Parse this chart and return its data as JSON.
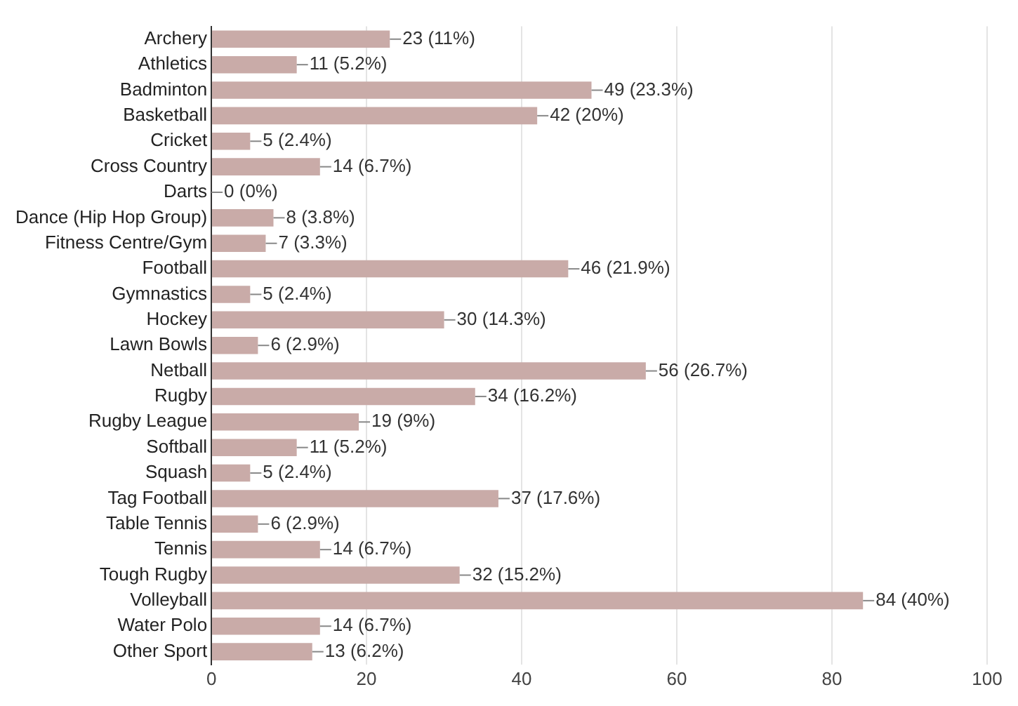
{
  "chart_data": {
    "type": "bar",
    "orientation": "horizontal",
    "categories": [
      "Archery",
      "Athletics",
      "Badminton",
      "Basketball",
      "Cricket",
      "Cross Country",
      "Darts",
      "Dance (Hip Hop Group)",
      "Fitness Centre/Gym",
      "Football",
      "Gymnastics",
      "Hockey",
      "Lawn Bowls",
      "Netball",
      "Rugby",
      "Rugby League",
      "Softball",
      "Squash",
      "Tag Football",
      "Table Tennis",
      "Tennis",
      "Tough Rugby",
      "Volleyball",
      "Water Polo",
      "Other Sport"
    ],
    "values": [
      23,
      11,
      49,
      42,
      5,
      14,
      0,
      8,
      7,
      46,
      5,
      30,
      6,
      56,
      34,
      19,
      11,
      5,
      37,
      6,
      14,
      32,
      84,
      14,
      13
    ],
    "value_labels": [
      "23 (11%)",
      "11 (5.2%)",
      "49 (23.3%)",
      "42 (20%)",
      "5 (2.4%)",
      "14 (6.7%)",
      "0 (0%)",
      "8 (3.8%)",
      "7 (3.3%)",
      "46 (21.9%)",
      "5 (2.4%)",
      "30 (14.3%)",
      "6 (2.9%)",
      "56 (26.7%)",
      "34 (16.2%)",
      "19 (9%)",
      "11 (5.2%)",
      "5 (2.4%)",
      "37 (17.6%)",
      "6 (2.9%)",
      "14 (6.7%)",
      "32 (15.2%)",
      "84 (40%)",
      "14 (6.7%)",
      "13 (6.2%)"
    ],
    "color": "#c9aba8",
    "xlim": [
      0,
      100
    ],
    "xticks": [
      0,
      20,
      40,
      60,
      80,
      100
    ],
    "grid": "x"
  }
}
